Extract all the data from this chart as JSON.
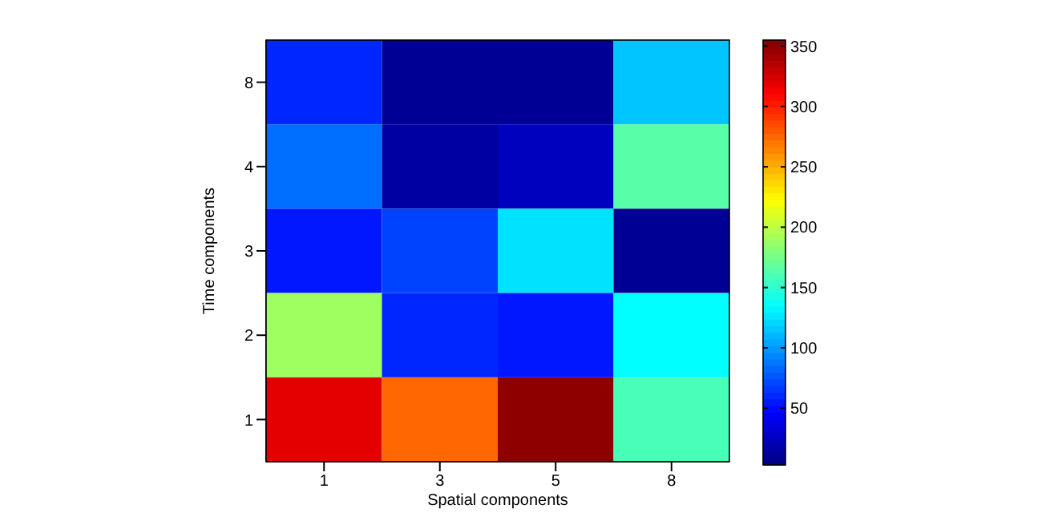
{
  "chart_data": {
    "type": "heatmap",
    "xlabel": "Spatial components",
    "ylabel": "Time components",
    "categories": [
      "1",
      "3",
      "5",
      "8"
    ],
    "y_categories": [
      "8",
      "4",
      "3",
      "2",
      "1"
    ],
    "cells": [
      [
        60,
        10,
        10,
        115
      ],
      [
        85,
        15,
        25,
        165
      ],
      [
        55,
        70,
        125,
        10
      ],
      [
        190,
        60,
        55,
        135
      ],
      [
        320,
        275,
        350,
        160
      ]
    ],
    "clim": [
      3,
      355
    ],
    "cticks": [
      50,
      100,
      150,
      200,
      250,
      300,
      350
    ]
  }
}
